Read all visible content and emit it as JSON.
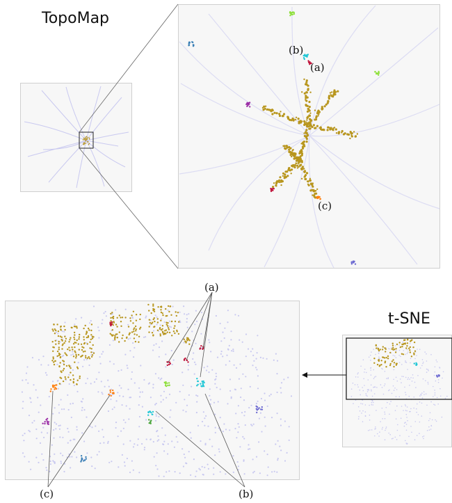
{
  "titles": {
    "topomap": "TopoMap",
    "tsne": "t-SNE"
  },
  "annotations": {
    "a": "(a)",
    "b": "(b)",
    "c": "(c)"
  },
  "colors": {
    "background_points": "#c9c9f0",
    "main_cluster": "#b8961e",
    "cluster_a": "#c0123a",
    "cluster_b": "#22c7d6",
    "cluster_c": "#ff7f0e",
    "cluster_green": "#8ee03a",
    "cluster_purple": "#9b2fa6",
    "cluster_blue": "#3a7fb5",
    "cluster_violet": "#6d6ad1"
  }
}
